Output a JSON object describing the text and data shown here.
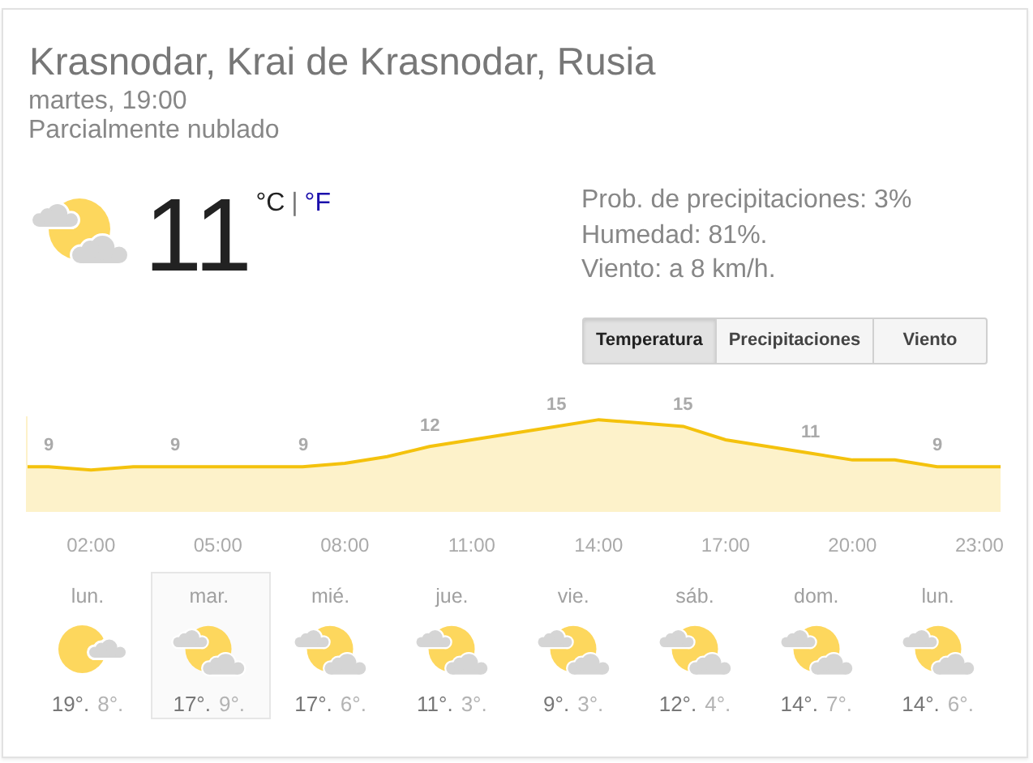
{
  "chart_data": [
    {
      "type": "other",
      "title": "Krasnodar, Krai de Krasnodar, Rusia",
      "subtitle": "martes, 19:00",
      "annotations": [
        "Parcialmente nublado",
        "11",
        "°C",
        "|",
        "°F",
        "Prob. de precipitaciones: 3%",
        "Humedad: 81%.",
        "Viento: a 8 km/h.",
        "Temperatura",
        "Precipitaciones",
        "Viento"
      ]
    },
    {
      "type": "area",
      "x": [
        0.5,
        1,
        2,
        3,
        4,
        5,
        6,
        7,
        8,
        9,
        10,
        11,
        12,
        13,
        14,
        15,
        16,
        17,
        18,
        19,
        20,
        21,
        22,
        23,
        23.5
      ],
      "values": [
        9,
        9,
        8.5,
        9,
        9,
        9,
        9,
        9,
        9.5,
        10.5,
        12,
        13,
        14,
        15,
        16,
        15.5,
        15,
        13,
        12,
        11,
        10,
        10,
        9,
        9,
        9
      ],
      "value_labels": [
        null,
        "9",
        null,
        null,
        "9",
        null,
        null,
        "9",
        null,
        null,
        "12",
        null,
        null,
        "15",
        null,
        null,
        "15",
        null,
        null,
        "11",
        null,
        null,
        "9",
        null,
        null
      ],
      "color": "#f4c20d",
      "xlim": [
        0.5,
        23.5
      ],
      "xticks": [
        {
          "value": 2,
          "label": "02:00"
        },
        {
          "value": 5,
          "label": "05:00"
        },
        {
          "value": 8,
          "label": "08:00"
        },
        {
          "value": 11,
          "label": "11:00"
        },
        {
          "value": 14,
          "label": "14:00"
        },
        {
          "value": 17,
          "label": "17:00"
        },
        {
          "value": 20,
          "label": "20:00"
        },
        {
          "value": 23,
          "label": "23:00"
        }
      ],
      "ylim": [
        2.5,
        16.5
      ],
      "tick_labels": "x"
    },
    {
      "type": "other",
      "categories": [
        "lun.",
        "mar.",
        "mié.",
        "jue.",
        "vie.",
        "sáb.",
        "dom.",
        "lun."
      ],
      "annotations": [
        "19°.",
        "8°.",
        "17°.",
        "9°.",
        "17°.",
        "6°.",
        "11°.",
        "3°.",
        "9°.",
        "3°.",
        "12°.",
        "4°.",
        "14°.",
        "7°.",
        "14°.",
        "6°."
      ]
    }
  ]
}
